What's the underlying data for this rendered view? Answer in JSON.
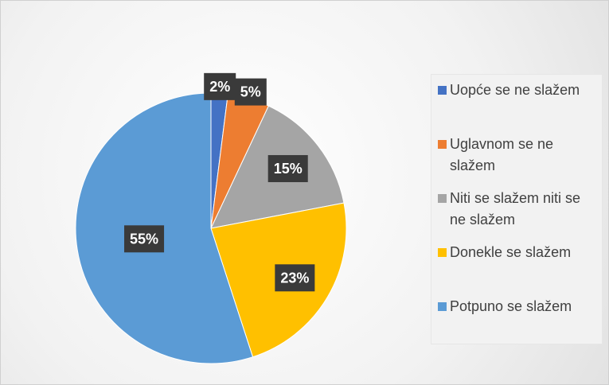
{
  "chart_data": {
    "type": "pie",
    "categories": [
      "Uopće se ne slažem",
      "Uglavnom se ne slažem",
      "Niti se slažem niti se ne slažem",
      "Donekle se slažem",
      "Potpuno se slažem"
    ],
    "values": [
      2,
      5,
      15,
      23,
      55
    ],
    "value_labels": [
      "2%",
      "5%",
      "15%",
      "23%",
      "55%"
    ],
    "colors": [
      "#4472c4",
      "#ed7d31",
      "#a5a5a5",
      "#ffc000",
      "#5b9bd5"
    ],
    "legend": "right"
  }
}
